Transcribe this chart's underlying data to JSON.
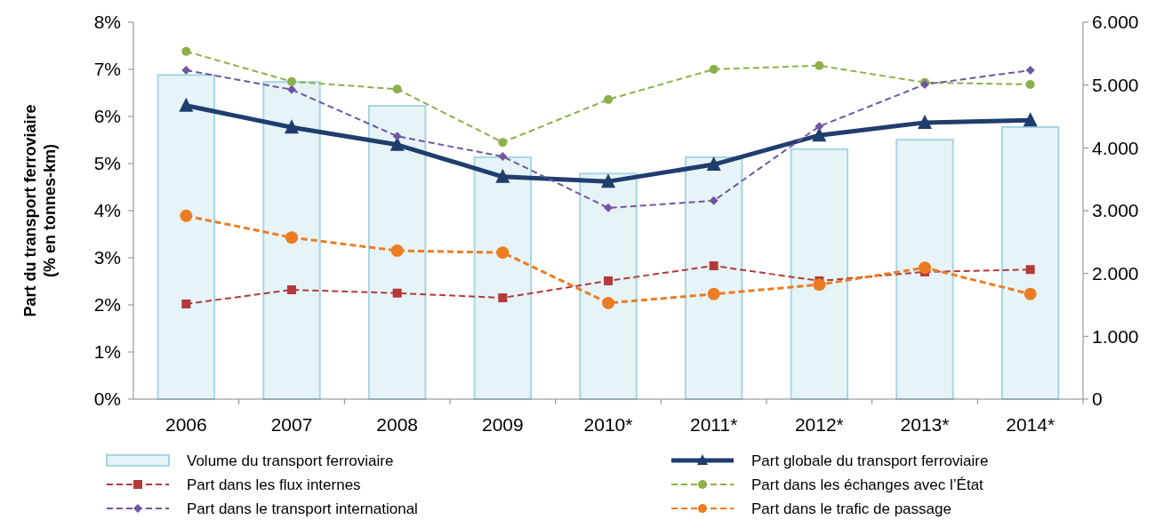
{
  "chart_data": {
    "type": "line",
    "categories": [
      "2006",
      "2007",
      "2008",
      "2009",
      "2010*",
      "2011*",
      "2012*",
      "2013*",
      "2014*"
    ],
    "ylabel": "Part du transport ferroviaire\n(% en tonnes-km)",
    "ylim": [
      0,
      8
    ],
    "yticks": [
      {
        "value": 0,
        "label": "0%"
      },
      {
        "value": 1,
        "label": "1%"
      },
      {
        "value": 2,
        "label": "2%"
      },
      {
        "value": 3,
        "label": "3%"
      },
      {
        "value": 4,
        "label": "4%"
      },
      {
        "value": 5,
        "label": "5%"
      },
      {
        "value": 6,
        "label": "6%"
      },
      {
        "value": 7,
        "label": "7%"
      },
      {
        "value": 8,
        "label": "8%"
      }
    ],
    "y2lim": [
      0,
      6000
    ],
    "y2ticks": [
      0,
      {
        "value": 1000,
        "label": "1.000"
      },
      {
        "value": 2000,
        "label": "2.000"
      },
      {
        "value": 3000,
        "label": "3.000"
      },
      {
        "value": 4000,
        "label": "4.000"
      },
      {
        "value": 5000,
        "label": "5.000"
      },
      {
        "value": 6000,
        "label": "6.000"
      }
    ],
    "legend": "bottom",
    "series": [
      {
        "name": "Volume du transport ferroviaire",
        "type": "bar",
        "axis": "y2",
        "color": "#e6f3f7",
        "values": [
          5160,
          5050,
          4670,
          3850,
          3590,
          3850,
          3980,
          4130,
          4330
        ]
      },
      {
        "name": "Part globale du transport ferroviaire",
        "color": "#1f3e6e",
        "marker": "triangle",
        "line_style": "solid",
        "values": [
          6.23,
          5.77,
          5.4,
          4.72,
          4.62,
          4.98,
          5.6,
          5.87,
          5.92
        ]
      },
      {
        "name": "Part dans les flux internes",
        "color": "#b23a3a",
        "marker": "square",
        "line_style": "dashed",
        "values": [
          2.02,
          2.32,
          2.25,
          2.15,
          2.51,
          2.83,
          2.51,
          2.7,
          2.75
        ]
      },
      {
        "name": "Part dans les échanges avec l’État",
        "color": "#8cb04a",
        "marker": "circle",
        "line_style": "dashed",
        "values": [
          7.38,
          6.74,
          6.58,
          5.45,
          6.36,
          7.0,
          7.08,
          6.72,
          6.68
        ]
      },
      {
        "name": "Part dans le transport international",
        "color": "#7256a0",
        "marker": "diamond",
        "line_style": "dashed",
        "values": [
          6.98,
          6.57,
          5.58,
          5.15,
          4.06,
          4.21,
          5.79,
          6.68,
          6.98
        ]
      },
      {
        "name": "Part dans le trafic de passage",
        "color": "#ec7c24",
        "marker": "circle",
        "line_style": "dashed",
        "values": [
          3.89,
          3.43,
          3.15,
          3.11,
          2.04,
          2.23,
          2.43,
          2.79,
          2.23
        ]
      }
    ]
  }
}
